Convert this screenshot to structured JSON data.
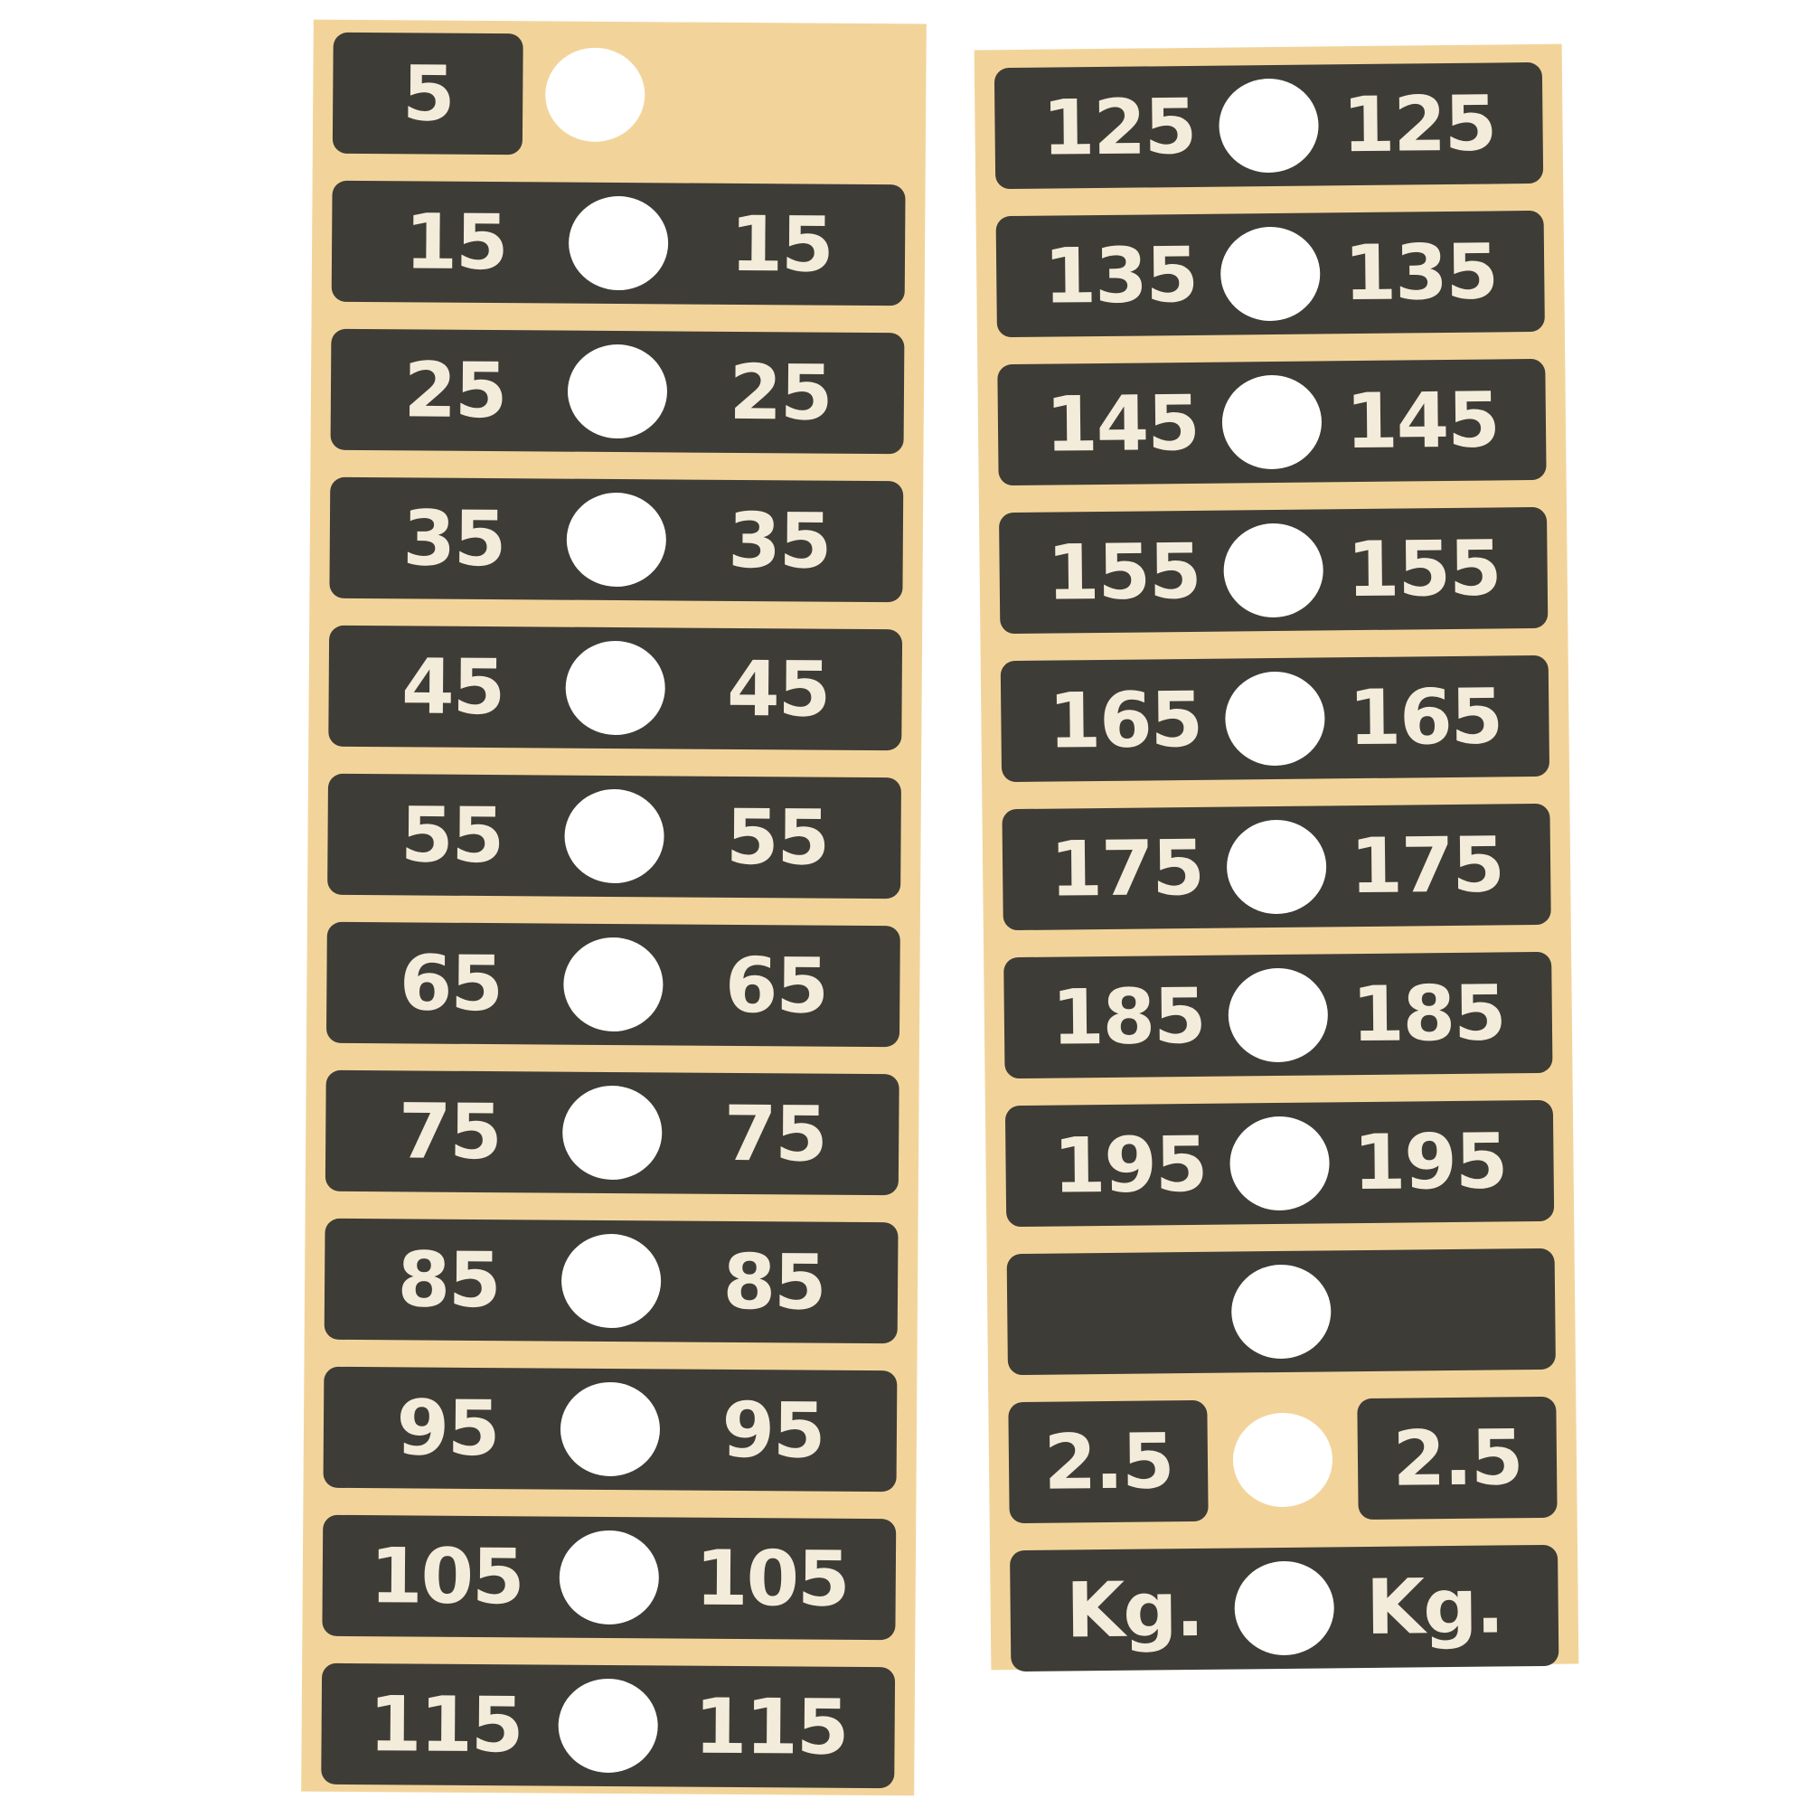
{
  "colors": {
    "sheet": "#f2d49b",
    "label": "#3e3c36",
    "text": "#f4ecda",
    "hole": "#ffffff"
  },
  "left_sheet": [
    {
      "left": "5",
      "right": ""
    },
    {
      "left": "15",
      "right": "15"
    },
    {
      "left": "25",
      "right": "25"
    },
    {
      "left": "35",
      "right": "35"
    },
    {
      "left": "45",
      "right": "45"
    },
    {
      "left": "55",
      "right": "55"
    },
    {
      "left": "65",
      "right": "65"
    },
    {
      "left": "75",
      "right": "75"
    },
    {
      "left": "85",
      "right": "85"
    },
    {
      "left": "95",
      "right": "95"
    },
    {
      "left": "105",
      "right": "105"
    },
    {
      "left": "115",
      "right": "115"
    }
  ],
  "right_sheet": [
    {
      "left": "125",
      "right": "125"
    },
    {
      "left": "135",
      "right": "135"
    },
    {
      "left": "145",
      "right": "145"
    },
    {
      "left": "155",
      "right": "155"
    },
    {
      "left": "165",
      "right": "165"
    },
    {
      "left": "175",
      "right": "175"
    },
    {
      "left": "185",
      "right": "185"
    },
    {
      "left": "195",
      "right": "195"
    },
    {
      "left": "",
      "right": ""
    },
    {
      "left": "2.5",
      "right": "2.5",
      "split": true
    },
    {
      "left": "Kg.",
      "right": "Kg."
    }
  ]
}
